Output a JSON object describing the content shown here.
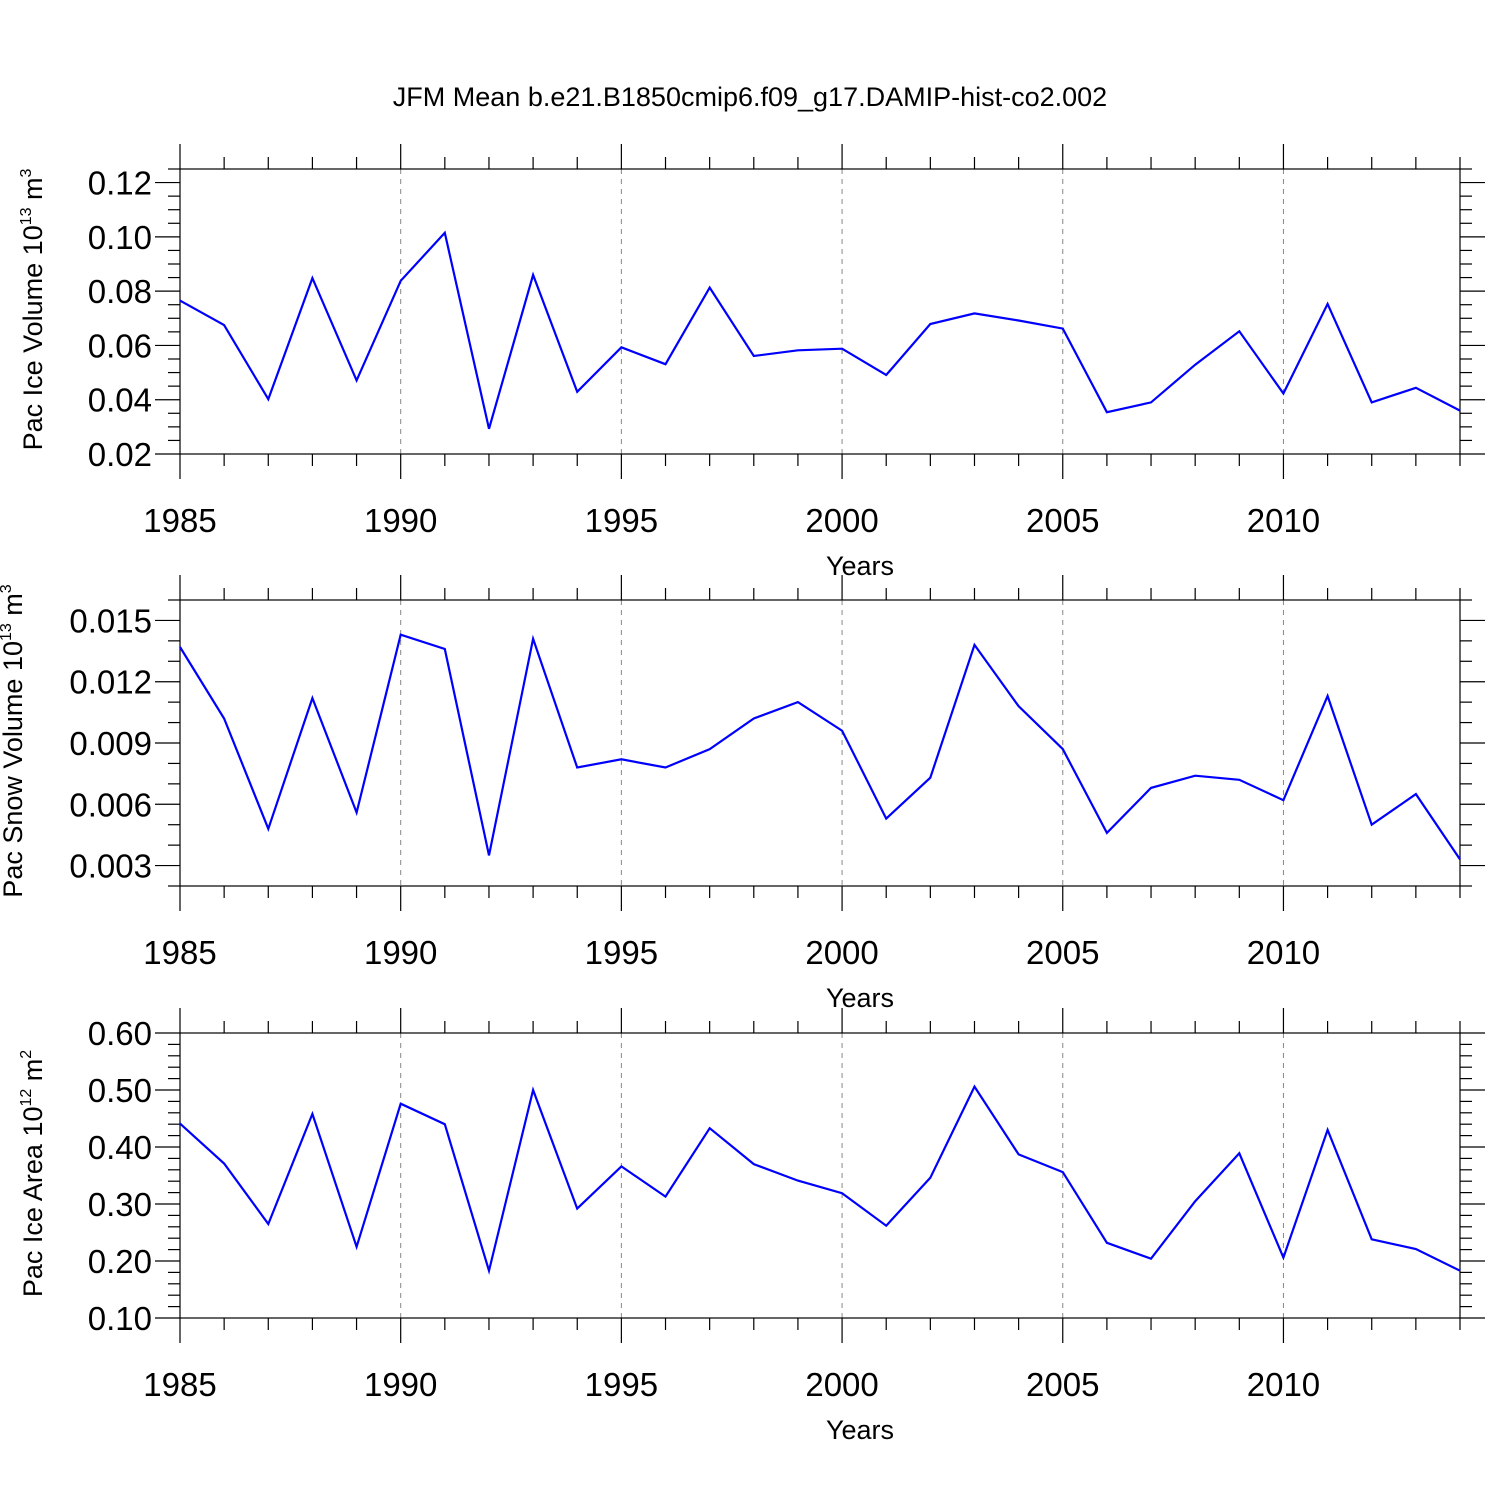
{
  "figure": {
    "title": "JFM Mean b.e21.B1850cmip6.f09_g17.DAMIP-hist-co2.002"
  },
  "chart_data": [
    {
      "type": "line",
      "title": "JFM Mean b.e21.B1850cmip6.f09_g17.DAMIP-hist-co2.002",
      "xlabel": "Years",
      "ylabel": {
        "main": "Pac Ice Volume 10",
        "exp": "13",
        "unit": " m",
        "unit_exp": "3"
      },
      "xlim": [
        1985,
        2014
      ],
      "ylim": [
        0.02,
        0.125
      ],
      "x_ticks": [
        1985,
        1990,
        1995,
        2000,
        2005,
        2010
      ],
      "x_tick_labels": [
        "1985",
        "1990",
        "1995",
        "2000",
        "2005",
        "2010"
      ],
      "y_ticks": [
        0.02,
        0.04,
        0.06,
        0.08,
        0.1,
        0.12
      ],
      "y_tick_labels": [
        "0.02",
        "0.04",
        "0.06",
        "0.08",
        "0.10",
        "0.12"
      ],
      "y_minor_step": 0.005,
      "x_minor_step": 1,
      "grid": "vertical-dashed-at-major-x",
      "line_color": "#0000ff",
      "x": [
        1985,
        1986,
        1987,
        1988,
        1989,
        1990,
        1991,
        1992,
        1993,
        1994,
        1995,
        1996,
        1997,
        1998,
        1999,
        2000,
        2001,
        2002,
        2003,
        2004,
        2005,
        2006,
        2007,
        2008,
        2009,
        2010,
        2011,
        2012,
        2013,
        2014
      ],
      "values": [
        0.0765,
        0.0675,
        0.0402,
        0.0848,
        0.0471,
        0.0838,
        0.1015,
        0.0293,
        0.086,
        0.0429,
        0.0593,
        0.0531,
        0.0813,
        0.0561,
        0.0582,
        0.0588,
        0.0491,
        0.0679,
        0.0718,
        0.0692,
        0.0662,
        0.0354,
        0.039,
        0.0529,
        0.0652,
        0.0423,
        0.0753,
        0.039,
        0.0444,
        0.036
      ]
    },
    {
      "type": "line",
      "xlabel": "Years",
      "ylabel": {
        "main": "Pac Snow Volume 10",
        "exp": "13",
        "unit": " m",
        "unit_exp": "3"
      },
      "xlim": [
        1985,
        2014
      ],
      "ylim": [
        0.002,
        0.016
      ],
      "x_ticks": [
        1985,
        1990,
        1995,
        2000,
        2005,
        2010
      ],
      "x_tick_labels": [
        "1985",
        "1990",
        "1995",
        "2000",
        "2005",
        "2010"
      ],
      "y_ticks": [
        0.003,
        0.006,
        0.009,
        0.012,
        0.015
      ],
      "y_tick_labels": [
        "0.003",
        "0.006",
        "0.009",
        "0.012",
        "0.015"
      ],
      "y_minor_step": 0.001,
      "x_minor_step": 1,
      "grid": "vertical-dashed-at-major-x",
      "line_color": "#0000ff",
      "x": [
        1985,
        1986,
        1987,
        1988,
        1989,
        1990,
        1991,
        1992,
        1993,
        1994,
        1995,
        1996,
        1997,
        1998,
        1999,
        2000,
        2001,
        2002,
        2003,
        2004,
        2005,
        2006,
        2007,
        2008,
        2009,
        2010,
        2011,
        2012,
        2013,
        2014
      ],
      "values": [
        0.0137,
        0.0102,
        0.0048,
        0.0112,
        0.0056,
        0.0143,
        0.0136,
        0.0035,
        0.0141,
        0.0078,
        0.0082,
        0.0078,
        0.0087,
        0.0102,
        0.011,
        0.0096,
        0.0053,
        0.0073,
        0.0138,
        0.0108,
        0.0087,
        0.0046,
        0.0068,
        0.0074,
        0.0072,
        0.0062,
        0.0113,
        0.005,
        0.0065,
        0.0033
      ]
    },
    {
      "type": "line",
      "xlabel": "Years",
      "ylabel": {
        "main": "Pac Ice Area 10",
        "exp": "12",
        "unit": " m",
        "unit_exp": "2"
      },
      "xlim": [
        1985,
        2014
      ],
      "ylim": [
        0.1,
        0.6
      ],
      "x_ticks": [
        1985,
        1990,
        1995,
        2000,
        2005,
        2010
      ],
      "x_tick_labels": [
        "1985",
        "1990",
        "1995",
        "2000",
        "2005",
        "2010"
      ],
      "y_ticks": [
        0.1,
        0.2,
        0.3,
        0.4,
        0.5,
        0.6
      ],
      "y_tick_labels": [
        "0.10",
        "0.20",
        "0.30",
        "0.40",
        "0.50",
        "0.60"
      ],
      "y_minor_step": 0.02,
      "x_minor_step": 1,
      "grid": "vertical-dashed-at-major-x",
      "line_color": "#0000ff",
      "x": [
        1985,
        1986,
        1987,
        1988,
        1989,
        1990,
        1991,
        1992,
        1993,
        1994,
        1995,
        1996,
        1997,
        1998,
        1999,
        2000,
        2001,
        2002,
        2003,
        2004,
        2005,
        2006,
        2007,
        2008,
        2009,
        2010,
        2011,
        2012,
        2013,
        2014
      ],
      "values": [
        0.441,
        0.371,
        0.265,
        0.458,
        0.225,
        0.476,
        0.44,
        0.183,
        0.5,
        0.292,
        0.366,
        0.313,
        0.433,
        0.37,
        0.341,
        0.319,
        0.262,
        0.346,
        0.506,
        0.387,
        0.356,
        0.232,
        0.204,
        0.305,
        0.389,
        0.206,
        0.43,
        0.238,
        0.221,
        0.183
      ]
    }
  ]
}
